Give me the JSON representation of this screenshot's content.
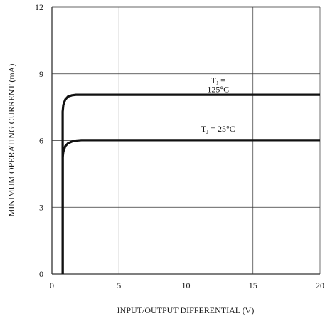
{
  "chart_data": {
    "type": "line",
    "title": "",
    "xlabel": "INPUT/OUTPUT DIFFERENTIAL (V)",
    "ylabel": "MINIMUM OPERATING CURRENT (mA)",
    "xlim": [
      0,
      20
    ],
    "ylim": [
      0,
      12
    ],
    "x_ticks": [
      "0",
      "5",
      "10",
      "15",
      "20"
    ],
    "y_ticks": [
      "0",
      "3",
      "6",
      "9",
      "12"
    ],
    "grid": true,
    "legend": "none",
    "series": [
      {
        "x": [
          0.8,
          0.8,
          0.85,
          1.0,
          1.2,
          1.5,
          1.8,
          2.0,
          5,
          10,
          15,
          20
        ],
        "y": [
          0,
          7.3,
          7.6,
          7.85,
          7.98,
          8.04,
          8.06,
          8.06,
          8.06,
          8.06,
          8.06,
          8.06
        ],
        "color": "#111111"
      },
      {
        "x": [
          0.8,
          0.8,
          0.85,
          1.0,
          1.2,
          1.5,
          1.8,
          2.2,
          5,
          10,
          15,
          20
        ],
        "y": [
          0,
          5.25,
          5.5,
          5.75,
          5.88,
          5.96,
          6.0,
          6.02,
          6.02,
          6.02,
          6.02,
          6.02
        ],
        "color": "#111111"
      }
    ],
    "annotations": [
      {
        "lines": [
          {
            "main": "T",
            "sub": "J",
            "rest": " ="
          },
          {
            "main": "125°C",
            "sub": "",
            "rest": ""
          }
        ],
        "x": 12.4,
        "y": 8.6
      },
      {
        "lines": [
          {
            "main": "T",
            "sub": "J",
            "rest": " = 25°C"
          }
        ],
        "x": 12.4,
        "y": 6.4
      }
    ]
  }
}
